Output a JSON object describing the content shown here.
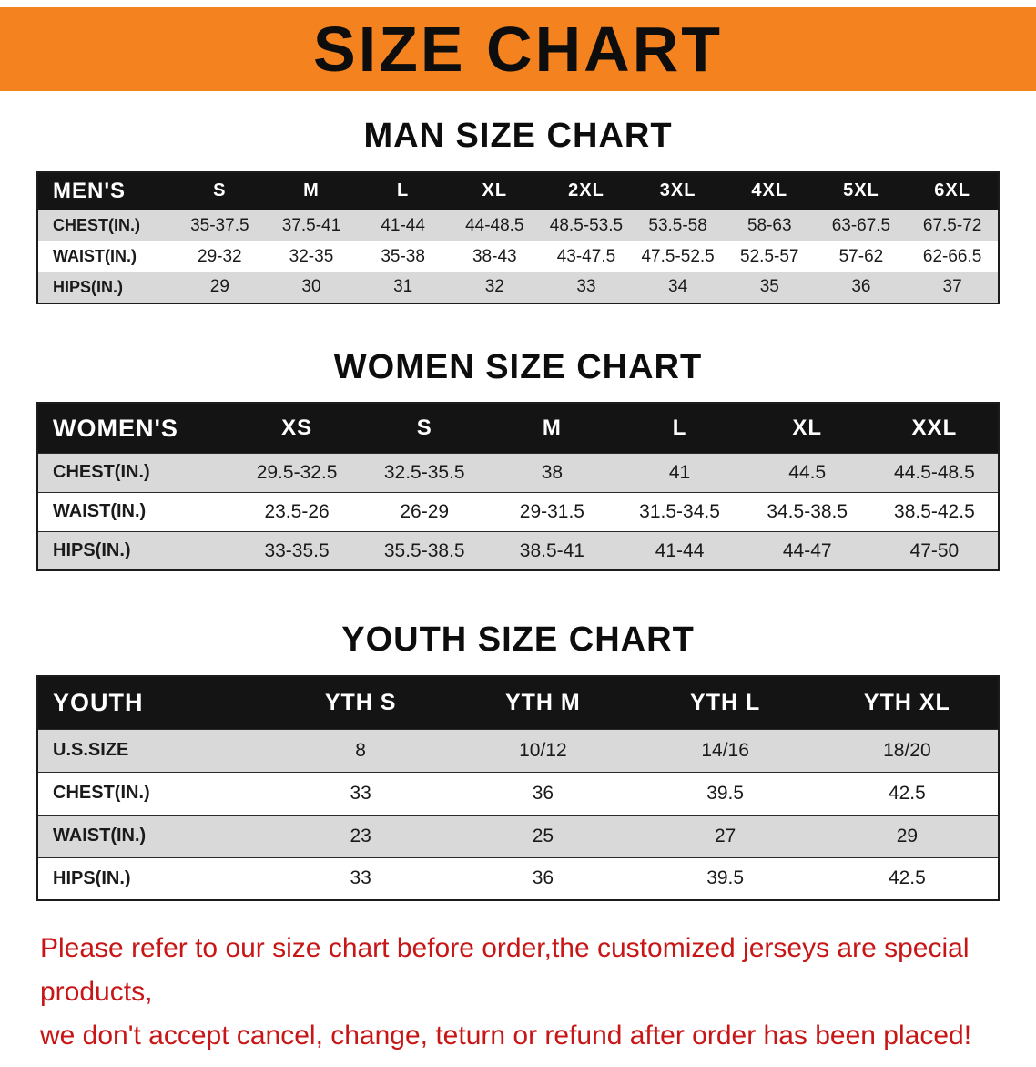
{
  "banner": {
    "title": "SIZE CHART"
  },
  "colors": {
    "banner_bg": "#f4831f",
    "table_header_bg": "#141414",
    "row_alt_gray": "#d9d9d9",
    "footer_text": "#c81616"
  },
  "sections": [
    {
      "heading": "MAN SIZE CHART",
      "table": {
        "name": "mens",
        "header": [
          "MEN'S",
          "S",
          "M",
          "L",
          "XL",
          "2XL",
          "3XL",
          "4XL",
          "5XL",
          "6XL"
        ],
        "rows": [
          [
            "CHEST(IN.)",
            "35-37.5",
            "37.5-41",
            "41-44",
            "44-48.5",
            "48.5-53.5",
            "53.5-58",
            "58-63",
            "63-67.5",
            "67.5-72"
          ],
          [
            "WAIST(IN.)",
            "29-32",
            "32-35",
            "35-38",
            "38-43",
            "43-47.5",
            "47.5-52.5",
            "52.5-57",
            "57-62",
            "62-66.5"
          ],
          [
            "HIPS(IN.)",
            "29",
            "30",
            "31",
            "32",
            "33",
            "34",
            "35",
            "36",
            "37"
          ]
        ]
      }
    },
    {
      "heading": "WOMEN SIZE CHART",
      "table": {
        "name": "womens",
        "header": [
          "WOMEN'S",
          "XS",
          "S",
          "M",
          "L",
          "XL",
          "XXL"
        ],
        "rows": [
          [
            "CHEST(IN.)",
            "29.5-32.5",
            "32.5-35.5",
            "38",
            "41",
            "44.5",
            "44.5-48.5"
          ],
          [
            "WAIST(IN.)",
            "23.5-26",
            "26-29",
            "29-31.5",
            "31.5-34.5",
            "34.5-38.5",
            "38.5-42.5"
          ],
          [
            "HIPS(IN.)",
            "33-35.5",
            "35.5-38.5",
            "38.5-41",
            "41-44",
            "44-47",
            "47-50"
          ]
        ]
      }
    },
    {
      "heading": "YOUTH SIZE CHART",
      "table": {
        "name": "youth",
        "header": [
          "YOUTH",
          "YTH S",
          "YTH M",
          "YTH L",
          "YTH XL"
        ],
        "rows": [
          [
            "U.S.SIZE",
            "8",
            "10/12",
            "14/16",
            "18/20"
          ],
          [
            "CHEST(IN.)",
            "33",
            "36",
            "39.5",
            "42.5"
          ],
          [
            "WAIST(IN.)",
            "23",
            "25",
            "27",
            "29"
          ],
          [
            "HIPS(IN.)",
            "33",
            "36",
            "39.5",
            "42.5"
          ]
        ]
      }
    }
  ],
  "footer": {
    "line1": "Please refer to our size chart before order,the customized jerseys are special products,",
    "line2": "we don't accept cancel, change, teturn or refund after order has been placed!"
  }
}
